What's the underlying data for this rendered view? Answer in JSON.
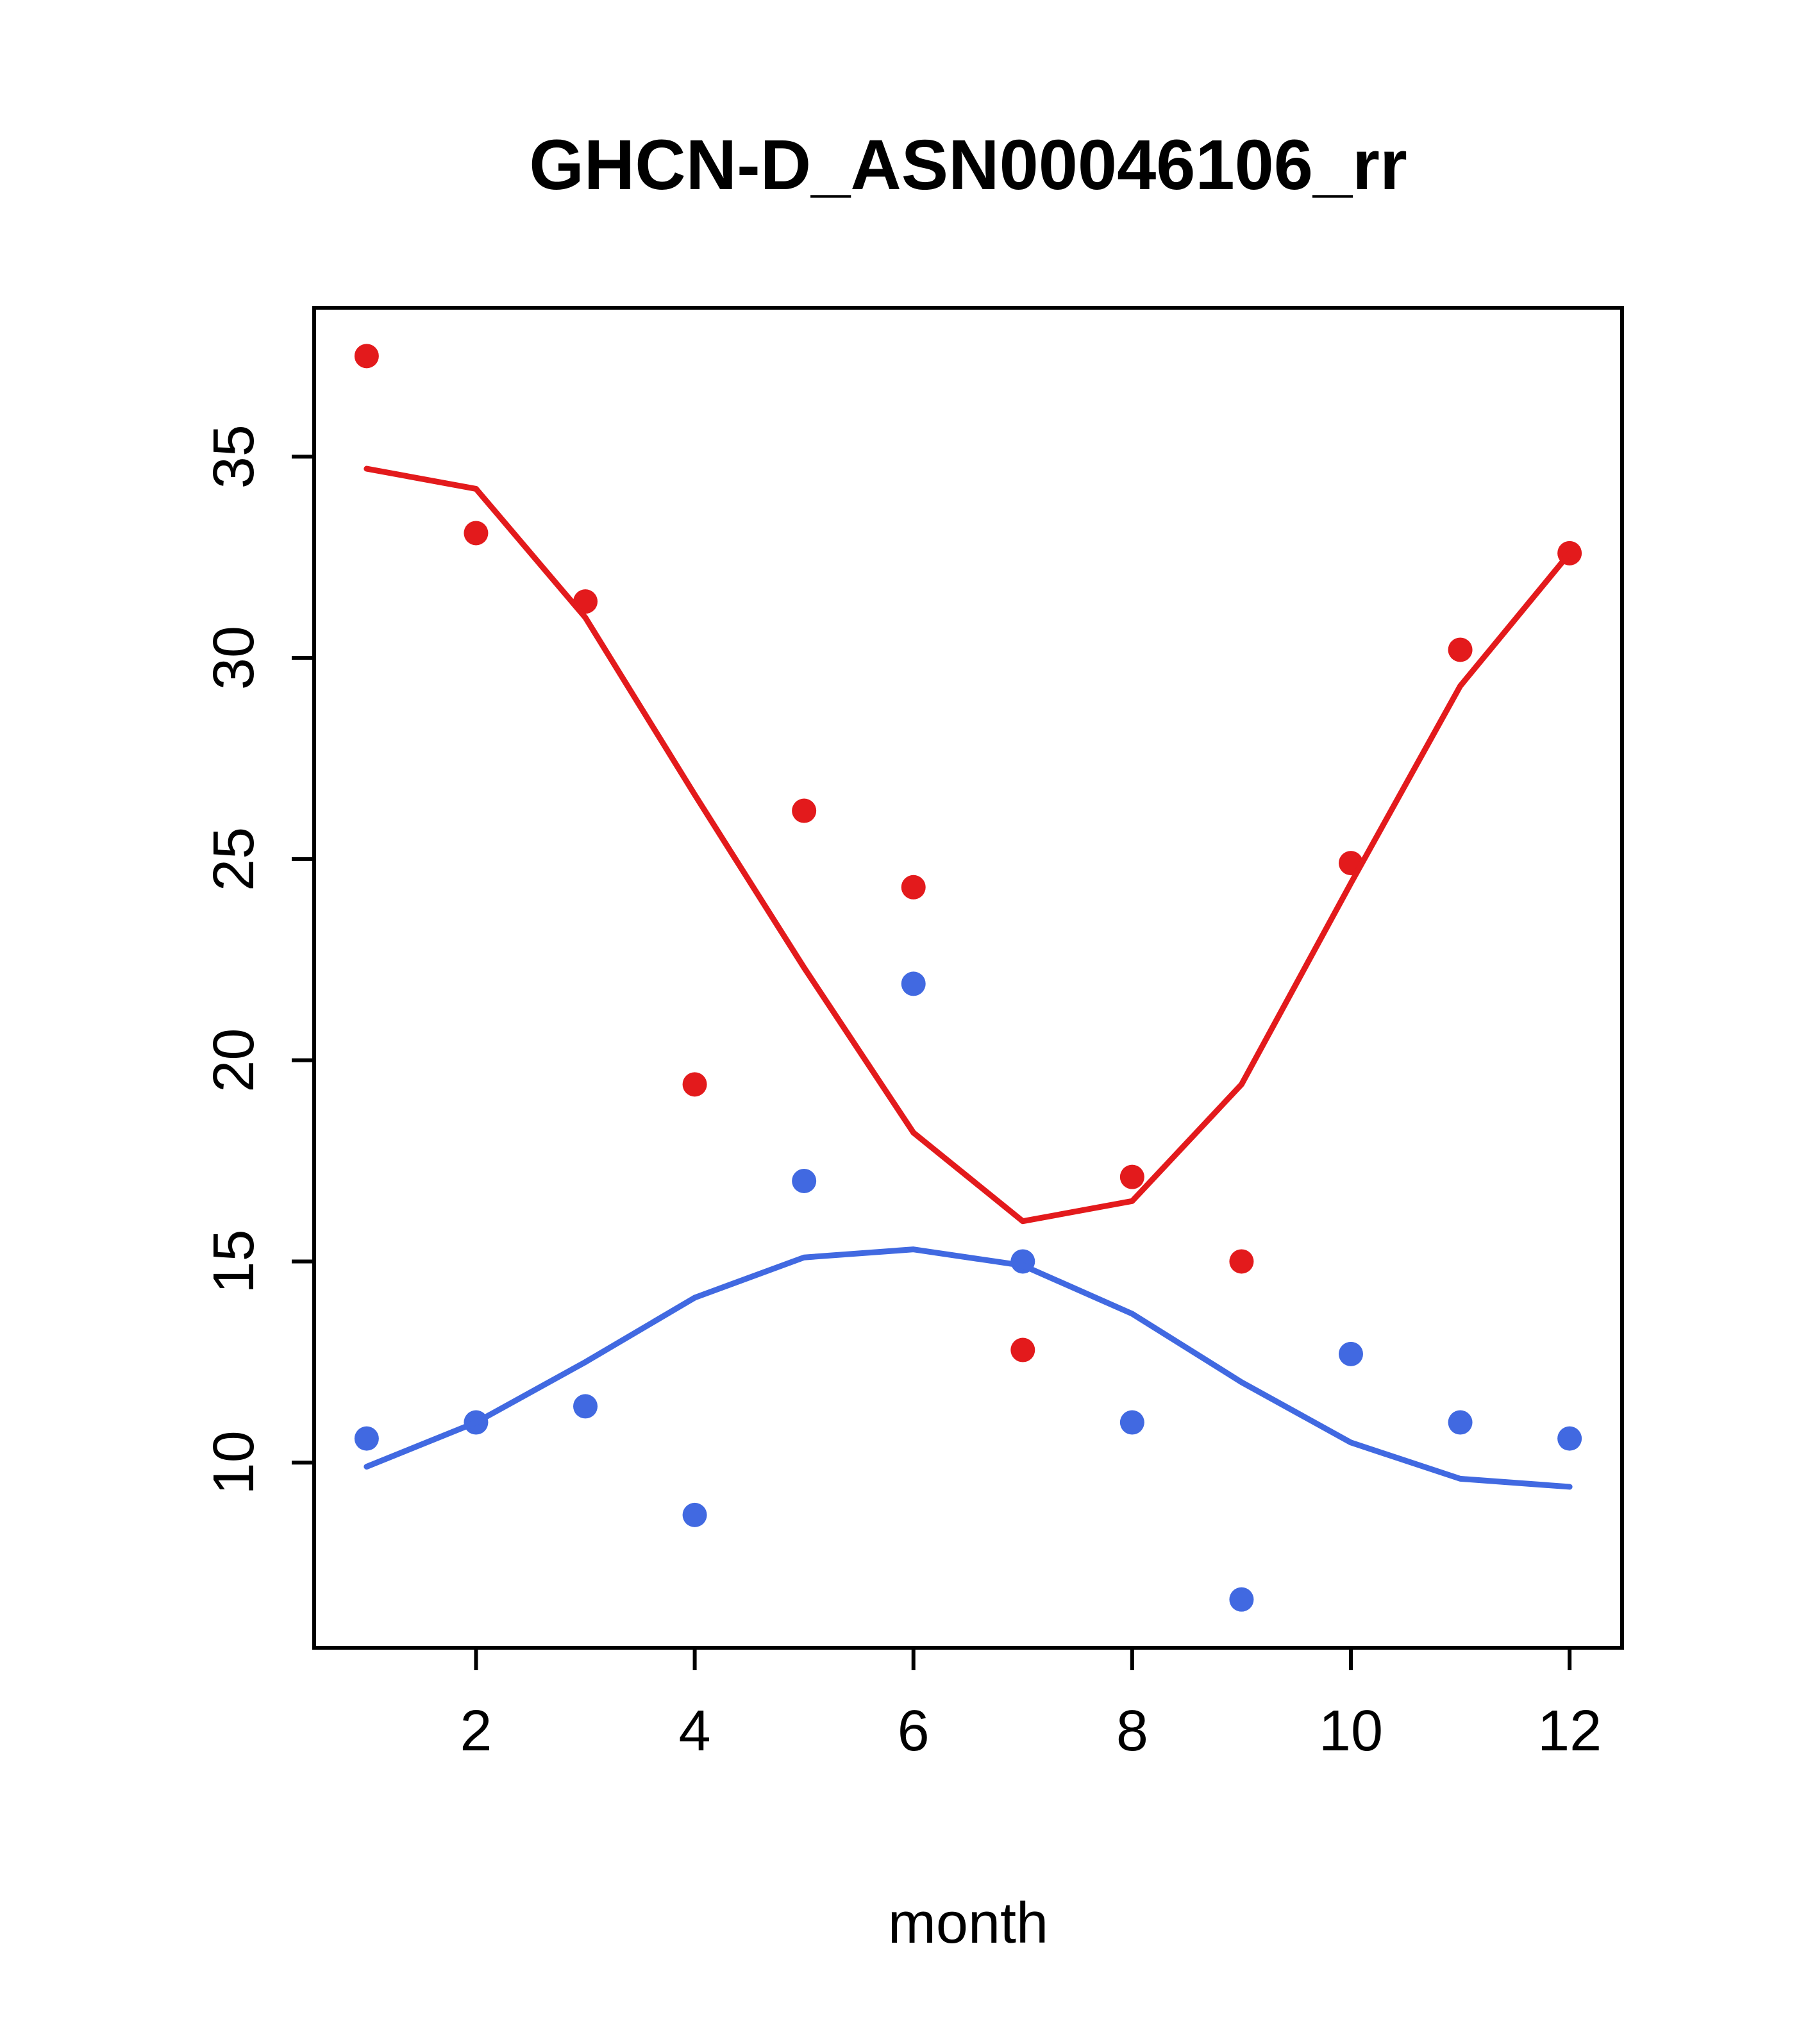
{
  "chart_data": {
    "type": "scatter",
    "title": "GHCN-D_ASN00046106_rr",
    "xlabel": "month",
    "ylabel": "",
    "xlim": [
      0.52,
      12.48
    ],
    "ylim": [
      5.4,
      38.7
    ],
    "x_ticks": [
      2,
      4,
      6,
      8,
      10,
      12
    ],
    "y_ticks": [
      10,
      15,
      20,
      25,
      30,
      35
    ],
    "grid": false,
    "legend": "none",
    "colors": {
      "red_series": "#e31a1c",
      "blue_series": "#4169e1",
      "axis": "#000000",
      "background": "#ffffff"
    },
    "x": [
      1,
      2,
      3,
      4,
      5,
      6,
      7,
      8,
      9,
      10,
      11,
      12
    ],
    "series": [
      {
        "name": "red-points",
        "kind": "points",
        "color_key": "red_series",
        "values": [
          37.5,
          33.1,
          31.4,
          19.4,
          26.2,
          24.3,
          12.8,
          17.1,
          15.0,
          24.9,
          30.2,
          32.6
        ]
      },
      {
        "name": "red-smooth-line",
        "kind": "line",
        "color_key": "red_series",
        "values": [
          34.7,
          34.2,
          31.0,
          26.6,
          22.3,
          18.2,
          16.0,
          16.5,
          19.4,
          24.4,
          29.3,
          32.6
        ]
      },
      {
        "name": "blue-points",
        "kind": "points",
        "color_key": "blue_series",
        "values": [
          10.6,
          11.0,
          11.4,
          8.7,
          17.0,
          21.9,
          15.0,
          11.0,
          6.6,
          12.7,
          11.0,
          10.6
        ]
      },
      {
        "name": "blue-smooth-line",
        "kind": "line",
        "color_key": "blue_series",
        "values": [
          9.9,
          11.0,
          12.5,
          14.1,
          15.1,
          15.3,
          14.9,
          13.7,
          12.0,
          10.5,
          9.6,
          9.4
        ]
      }
    ]
  }
}
